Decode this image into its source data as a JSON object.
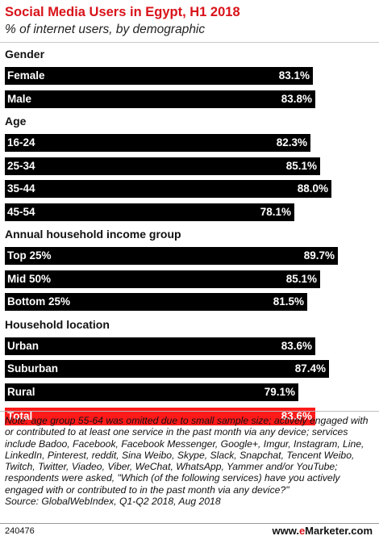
{
  "header": {
    "title": "Social Media Users in Egypt, H1 2018",
    "subtitle": "% of internet users, by demographic"
  },
  "chart_data": {
    "type": "bar",
    "orientation": "horizontal",
    "title": "Social Media Users in Egypt, H1 2018",
    "subtitle": "% of internet users, by demographic",
    "value_suffix": "%",
    "xlim": [
      0,
      100
    ],
    "grid": false,
    "groups": [
      {
        "name": "Gender",
        "items": [
          {
            "label": "Female",
            "value": 83.1,
            "display": "83.1%"
          },
          {
            "label": "Male",
            "value": 83.8,
            "display": "83.8%"
          }
        ]
      },
      {
        "name": "Age",
        "items": [
          {
            "label": "16-24",
            "value": 82.3,
            "display": "82.3%"
          },
          {
            "label": "25-34",
            "value": 85.1,
            "display": "85.1%"
          },
          {
            "label": "35-44",
            "value": 88.0,
            "display": "88.0%"
          },
          {
            "label": "45-54",
            "value": 78.1,
            "display": "78.1%"
          }
        ]
      },
      {
        "name": "Annual household income group",
        "items": [
          {
            "label": "Top 25%",
            "value": 89.7,
            "display": "89.7%"
          },
          {
            "label": "Mid 50%",
            "value": 85.1,
            "display": "85.1%"
          },
          {
            "label": "Bottom 25%",
            "value": 81.5,
            "display": "81.5%"
          }
        ]
      },
      {
        "name": "Household location",
        "items": [
          {
            "label": "Urban",
            "value": 83.6,
            "display": "83.6%"
          },
          {
            "label": "Suburban",
            "value": 87.4,
            "display": "87.4%"
          },
          {
            "label": "Rural",
            "value": 79.1,
            "display": "79.1%"
          }
        ]
      },
      {
        "name": "",
        "items": [
          {
            "label": "Total",
            "value": 83.6,
            "display": "83.6%",
            "highlight": true
          }
        ]
      }
    ]
  },
  "colors": {
    "title": "#d9121a",
    "bar": "#000000",
    "total_bar": "#ff1a1a"
  },
  "note": "Note: age group 55-64 was omitted due to small sample size; actively engaged with or contributed to at least one service in the past month via any device; services include Badoo, Facebook, Facebook Messenger, Google+, Imgur, Instagram, Line, LinkedIn, Pinterest, reddit, Sina Weibo, Skype, Slack, Snapchat, Tencent Weibo, Twitch, Twitter, Viadeo, Viber, WeChat, WhatsApp, Yammer and/or YouTube; respondents were asked, \"Which (of the following services) have you actively engaged with or contributed to in the past month via any device?\"",
  "source": "Source: GlobalWebIndex, Q1-Q2 2018, Aug 2018",
  "footer": {
    "chart_id": "240476",
    "brand_prefix": "www.",
    "brand_e": "e",
    "brand_rest": "Marketer",
    "brand_suffix": ".com"
  }
}
